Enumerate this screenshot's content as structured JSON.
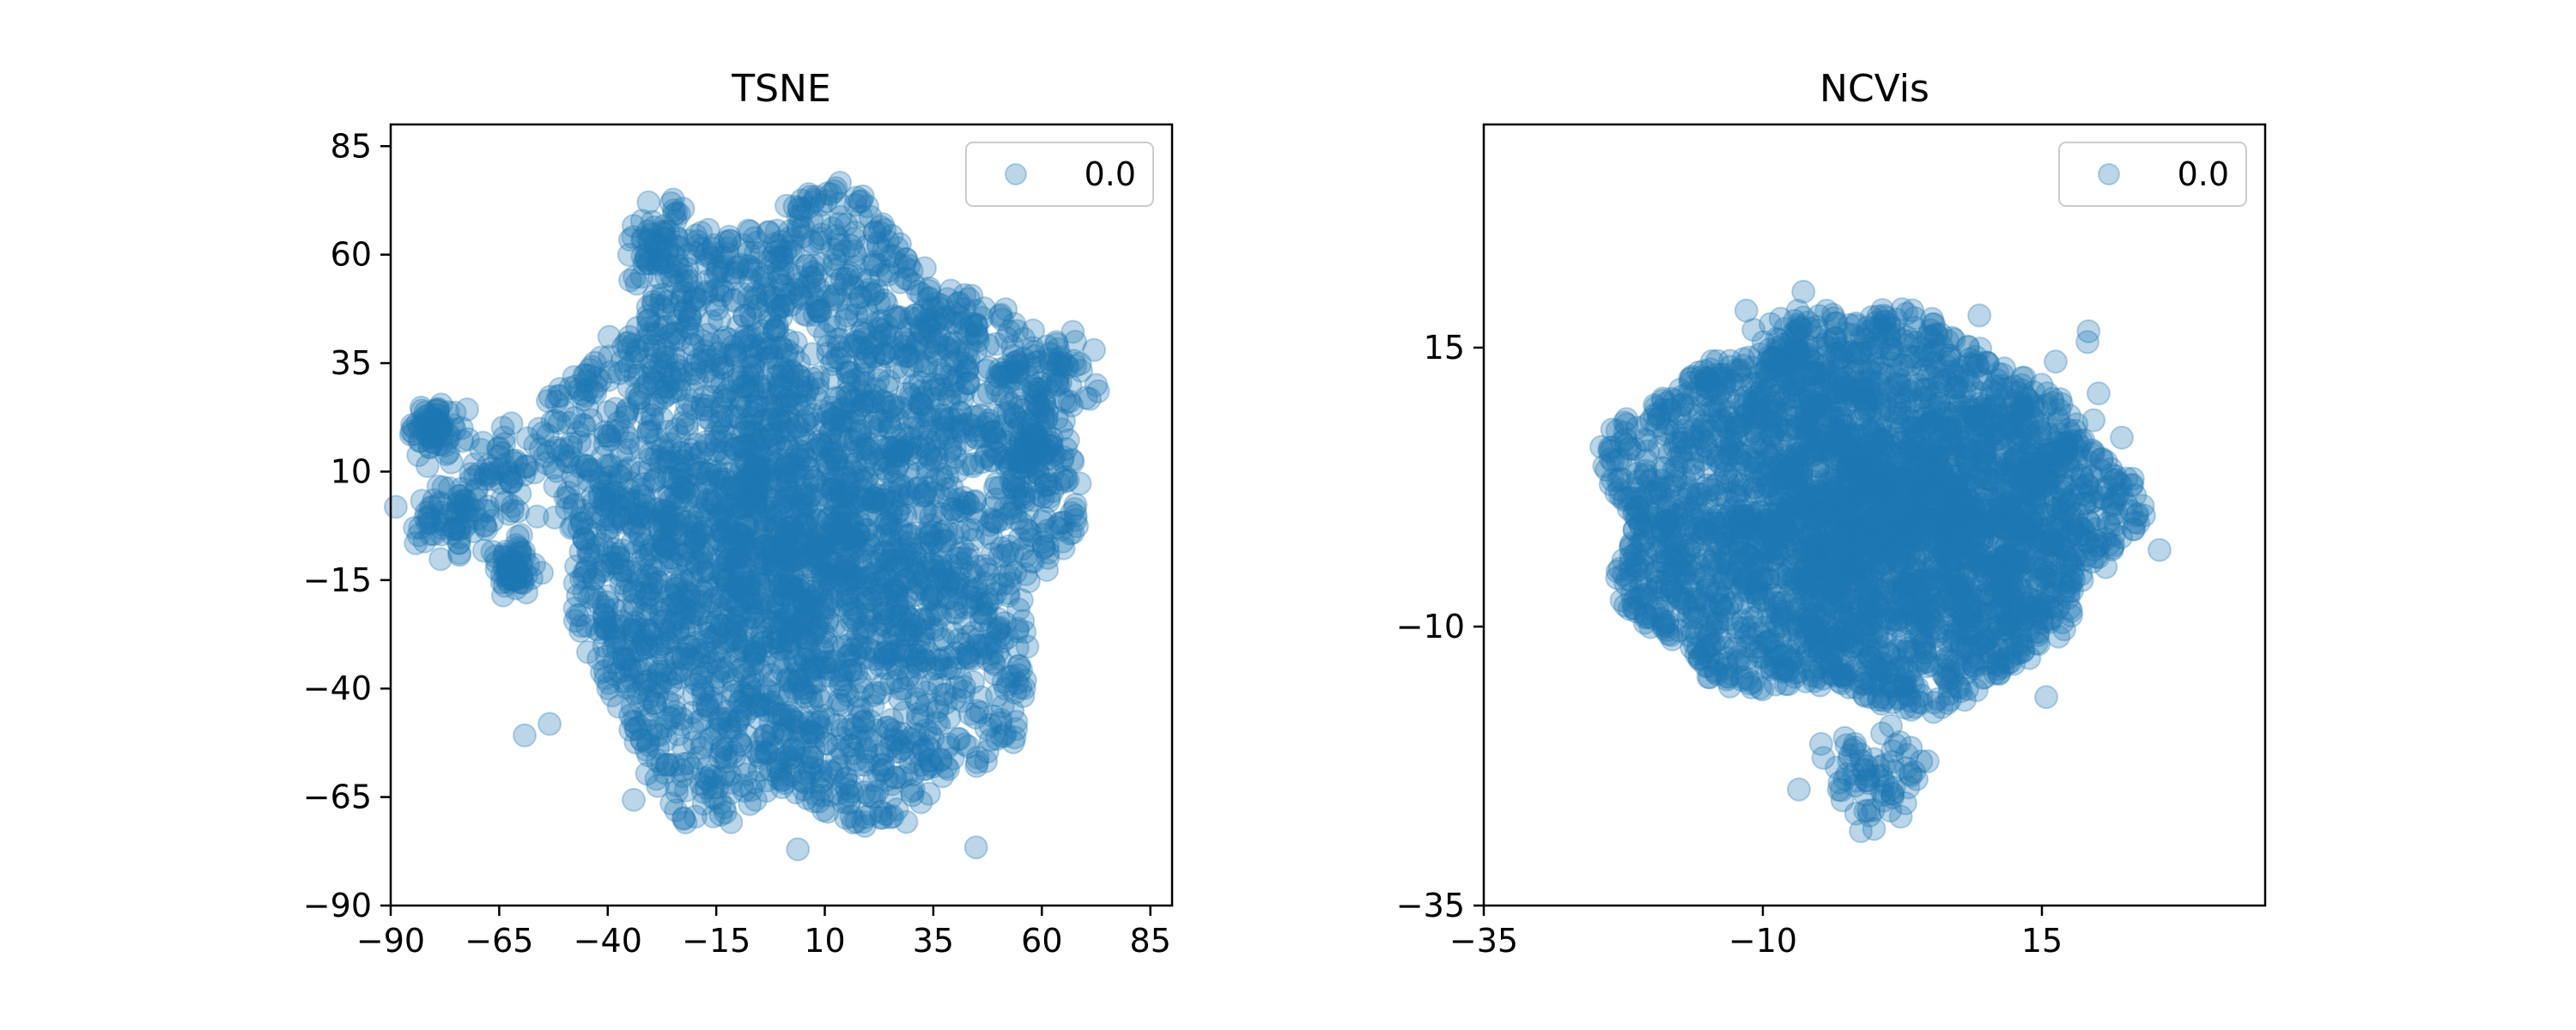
{
  "chart_data": [
    {
      "type": "scatter",
      "title": "TSNE",
      "xlabel": "",
      "ylabel": "",
      "xlim": [
        -90,
        90
      ],
      "ylim": [
        -90,
        90
      ],
      "xticks": [
        -90,
        -65,
        -40,
        -15,
        10,
        35,
        60,
        85
      ],
      "yticks": [
        -90,
        -65,
        -40,
        -15,
        10,
        35,
        60,
        85
      ],
      "xtick_labels": [
        "−90",
        "−65",
        "−40",
        "−15",
        "10",
        "35",
        "60",
        "85"
      ],
      "ytick_labels": [
        "−90",
        "−65",
        "−40",
        "−15",
        "10",
        "35",
        "60",
        "85"
      ],
      "grid": false,
      "legend": {
        "placement": "top-right",
        "entries": [
          "0.0"
        ]
      },
      "series": [
        {
          "name": "0.0",
          "color": "#1f77b4",
          "alpha": 0.3,
          "main_cloud": {
            "center": [
              2,
              -5
            ],
            "x_extent": [
              -52,
              66
            ],
            "y_extent": [
              -72,
              70
            ]
          },
          "clusters": [
            {
              "x": -80,
              "y": 20,
              "spread": 3
            },
            {
              "x": -76,
              "y": 0,
              "spread": 4
            },
            {
              "x": -62,
              "y": -13,
              "spread": 3
            },
            {
              "x": -63,
              "y": 10,
              "spread": 6
            },
            {
              "x": -28,
              "y": 62,
              "spread": 5
            },
            {
              "x": 62,
              "y": 32,
              "spread": 5
            },
            {
              "x": 58,
              "y": 15,
              "spread": 4
            }
          ]
        }
      ]
    },
    {
      "type": "scatter",
      "title": "NCVis",
      "xlabel": "",
      "ylabel": "",
      "xlim": [
        -35,
        35
      ],
      "ylim": [
        -35,
        35
      ],
      "xticks": [
        -35,
        -10,
        15
      ],
      "yticks": [
        -35,
        -10,
        15
      ],
      "xtick_labels": [
        "−35",
        "−10",
        "15"
      ],
      "ytick_labels": [
        "−35",
        "−10",
        "15"
      ],
      "grid": false,
      "legend": {
        "placement": "top-right",
        "entries": [
          "0.0"
        ]
      },
      "series": [
        {
          "name": "0.0",
          "color": "#1f77b4",
          "alpha": 0.3,
          "main_cloud": {
            "center": [
              2,
              0
            ],
            "x_extent": [
              -24,
              22
            ],
            "y_extent": [
              -17,
              17
            ]
          },
          "clusters": [
            {
              "x": 0,
              "y": -23,
              "spread": 2
            },
            {
              "x": -7,
              "y": 15,
              "spread": 2
            }
          ]
        }
      ]
    }
  ]
}
